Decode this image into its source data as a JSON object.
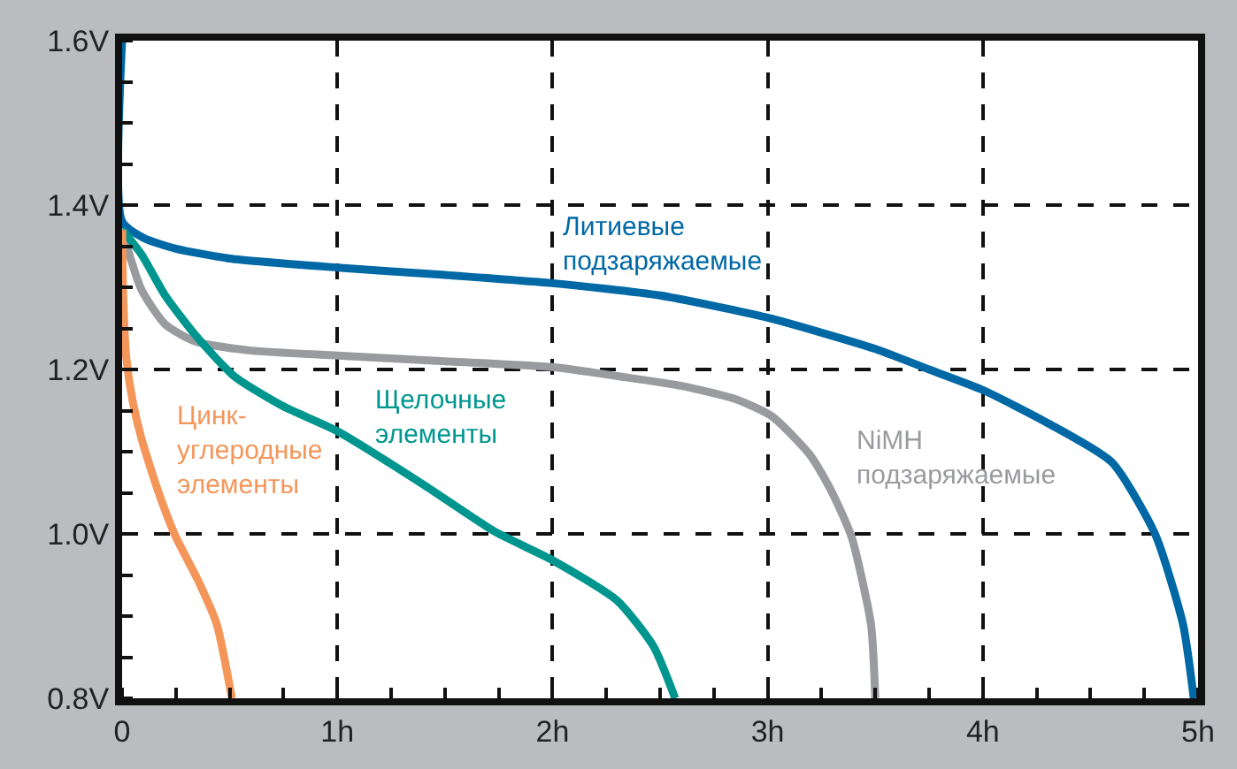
{
  "chart_data": {
    "type": "line",
    "series": [
      {
        "name": "Литиевые\nподзаряжаемые",
        "color": "#0068a5",
        "x": [
          0,
          0,
          0.1,
          0.25,
          0.5,
          1,
          1.5,
          2,
          2.5,
          3,
          3.5,
          3.75,
          4,
          4.3,
          4.6,
          4.8,
          4.93,
          4.98
        ],
        "values": [
          1.6,
          1.38,
          1.36,
          1.347,
          1.335,
          1.324,
          1.315,
          1.305,
          1.29,
          1.263,
          1.225,
          1.2,
          1.175,
          1.135,
          1.087,
          1.0,
          0.89,
          0.8
        ]
      },
      {
        "name": "NiMH\nподзаряжаемые",
        "color": "#9a9b9f",
        "x": [
          0,
          0.09,
          0.2,
          0.34,
          0.6,
          1,
          1.5,
          2,
          2.3,
          2.6,
          2.85,
          3.02,
          3.2,
          3.3,
          3.39,
          3.48,
          3.5
        ],
        "values": [
          1.37,
          1.297,
          1.255,
          1.234,
          1.223,
          1.217,
          1.21,
          1.203,
          1.192,
          1.18,
          1.164,
          1.143,
          1.095,
          1.05,
          0.996,
          0.89,
          0.8
        ]
      },
      {
        "name": "Щелочные\nэлементы",
        "color": "#00968f",
        "x": [
          0,
          0.09,
          0.2,
          0.34,
          0.52,
          0.75,
          1,
          1.4,
          1.73,
          2,
          2.3,
          2.47,
          2.57
        ],
        "values": [
          1.37,
          1.34,
          1.29,
          1.242,
          1.192,
          1.155,
          1.125,
          1.06,
          1.003,
          0.968,
          0.919,
          0.863,
          0.8
        ]
      },
      {
        "name": "Цинк-\nуглеродные\nэлементы",
        "color": "#f4965a",
        "x": [
          0,
          0.005,
          0.02,
          0.05,
          0.09,
          0.17,
          0.25,
          0.35,
          0.44,
          0.51
        ],
        "values": [
          1.37,
          1.29,
          1.213,
          1.16,
          1.116,
          1.05,
          0.996,
          0.945,
          0.89,
          0.8
        ]
      }
    ],
    "xlim": [
      0,
      5
    ],
    "xticks": [
      0,
      {
        "value": 1,
        "label": "1h"
      },
      {
        "value": 2,
        "label": "2h"
      },
      {
        "value": 3,
        "label": "3h"
      },
      {
        "value": 4,
        "label": "4h"
      },
      {
        "value": 5,
        "label": "5h"
      }
    ],
    "ylim": [
      0.8,
      1.6
    ],
    "yticks": [
      {
        "value": 0.8,
        "label": "0.8V"
      },
      {
        "value": 1.0,
        "label": "1.0V"
      },
      {
        "value": 1.2,
        "label": "1.2V"
      },
      {
        "value": 1.4,
        "label": "1.4V"
      },
      {
        "value": 1.6,
        "label": "1.6V"
      }
    ],
    "grid": true,
    "legend": false,
    "marker": "none",
    "line_style": "solid"
  }
}
